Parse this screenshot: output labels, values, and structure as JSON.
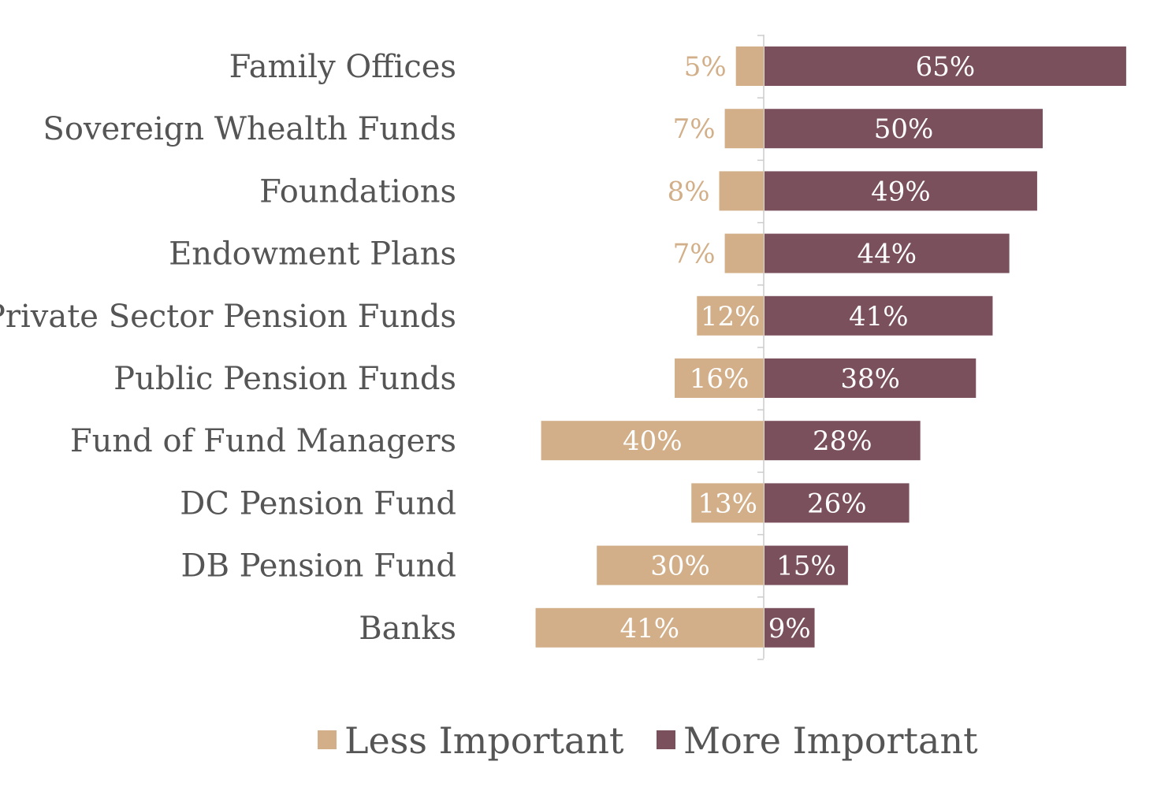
{
  "chart_data": {
    "type": "bar",
    "orientation": "horizontal-diverging",
    "categories": [
      "Family Offices",
      "Sovereign Whealth Funds",
      "Foundations",
      "Endowment Plans",
      "Private Sector Pension Funds",
      "Public Pension Funds",
      "Fund of Fund Managers",
      "DC Pension Fund",
      "DB Pension Fund",
      "Banks"
    ],
    "series": [
      {
        "name": "Less Important",
        "color": "#D2AF88",
        "values": [
          5,
          7,
          8,
          7,
          12,
          16,
          40,
          13,
          30,
          41
        ],
        "labels": [
          "5%",
          "7%",
          "8%",
          "7%",
          "12%",
          "16%",
          "40%",
          "13%",
          "30%",
          "41%"
        ]
      },
      {
        "name": "More Important",
        "color": "#7B505D",
        "values": [
          65,
          50,
          49,
          44,
          41,
          38,
          28,
          26,
          15,
          9
        ],
        "labels": [
          "65%",
          "50%",
          "49%",
          "44%",
          "41%",
          "38%",
          "28%",
          "26%",
          "15%",
          "9%"
        ]
      }
    ],
    "unit": "%",
    "legend_position": "bottom",
    "grid": false,
    "label_color_inside": "#ffffff",
    "axis_color": "#cccccc",
    "category_label_color": "#555555"
  }
}
